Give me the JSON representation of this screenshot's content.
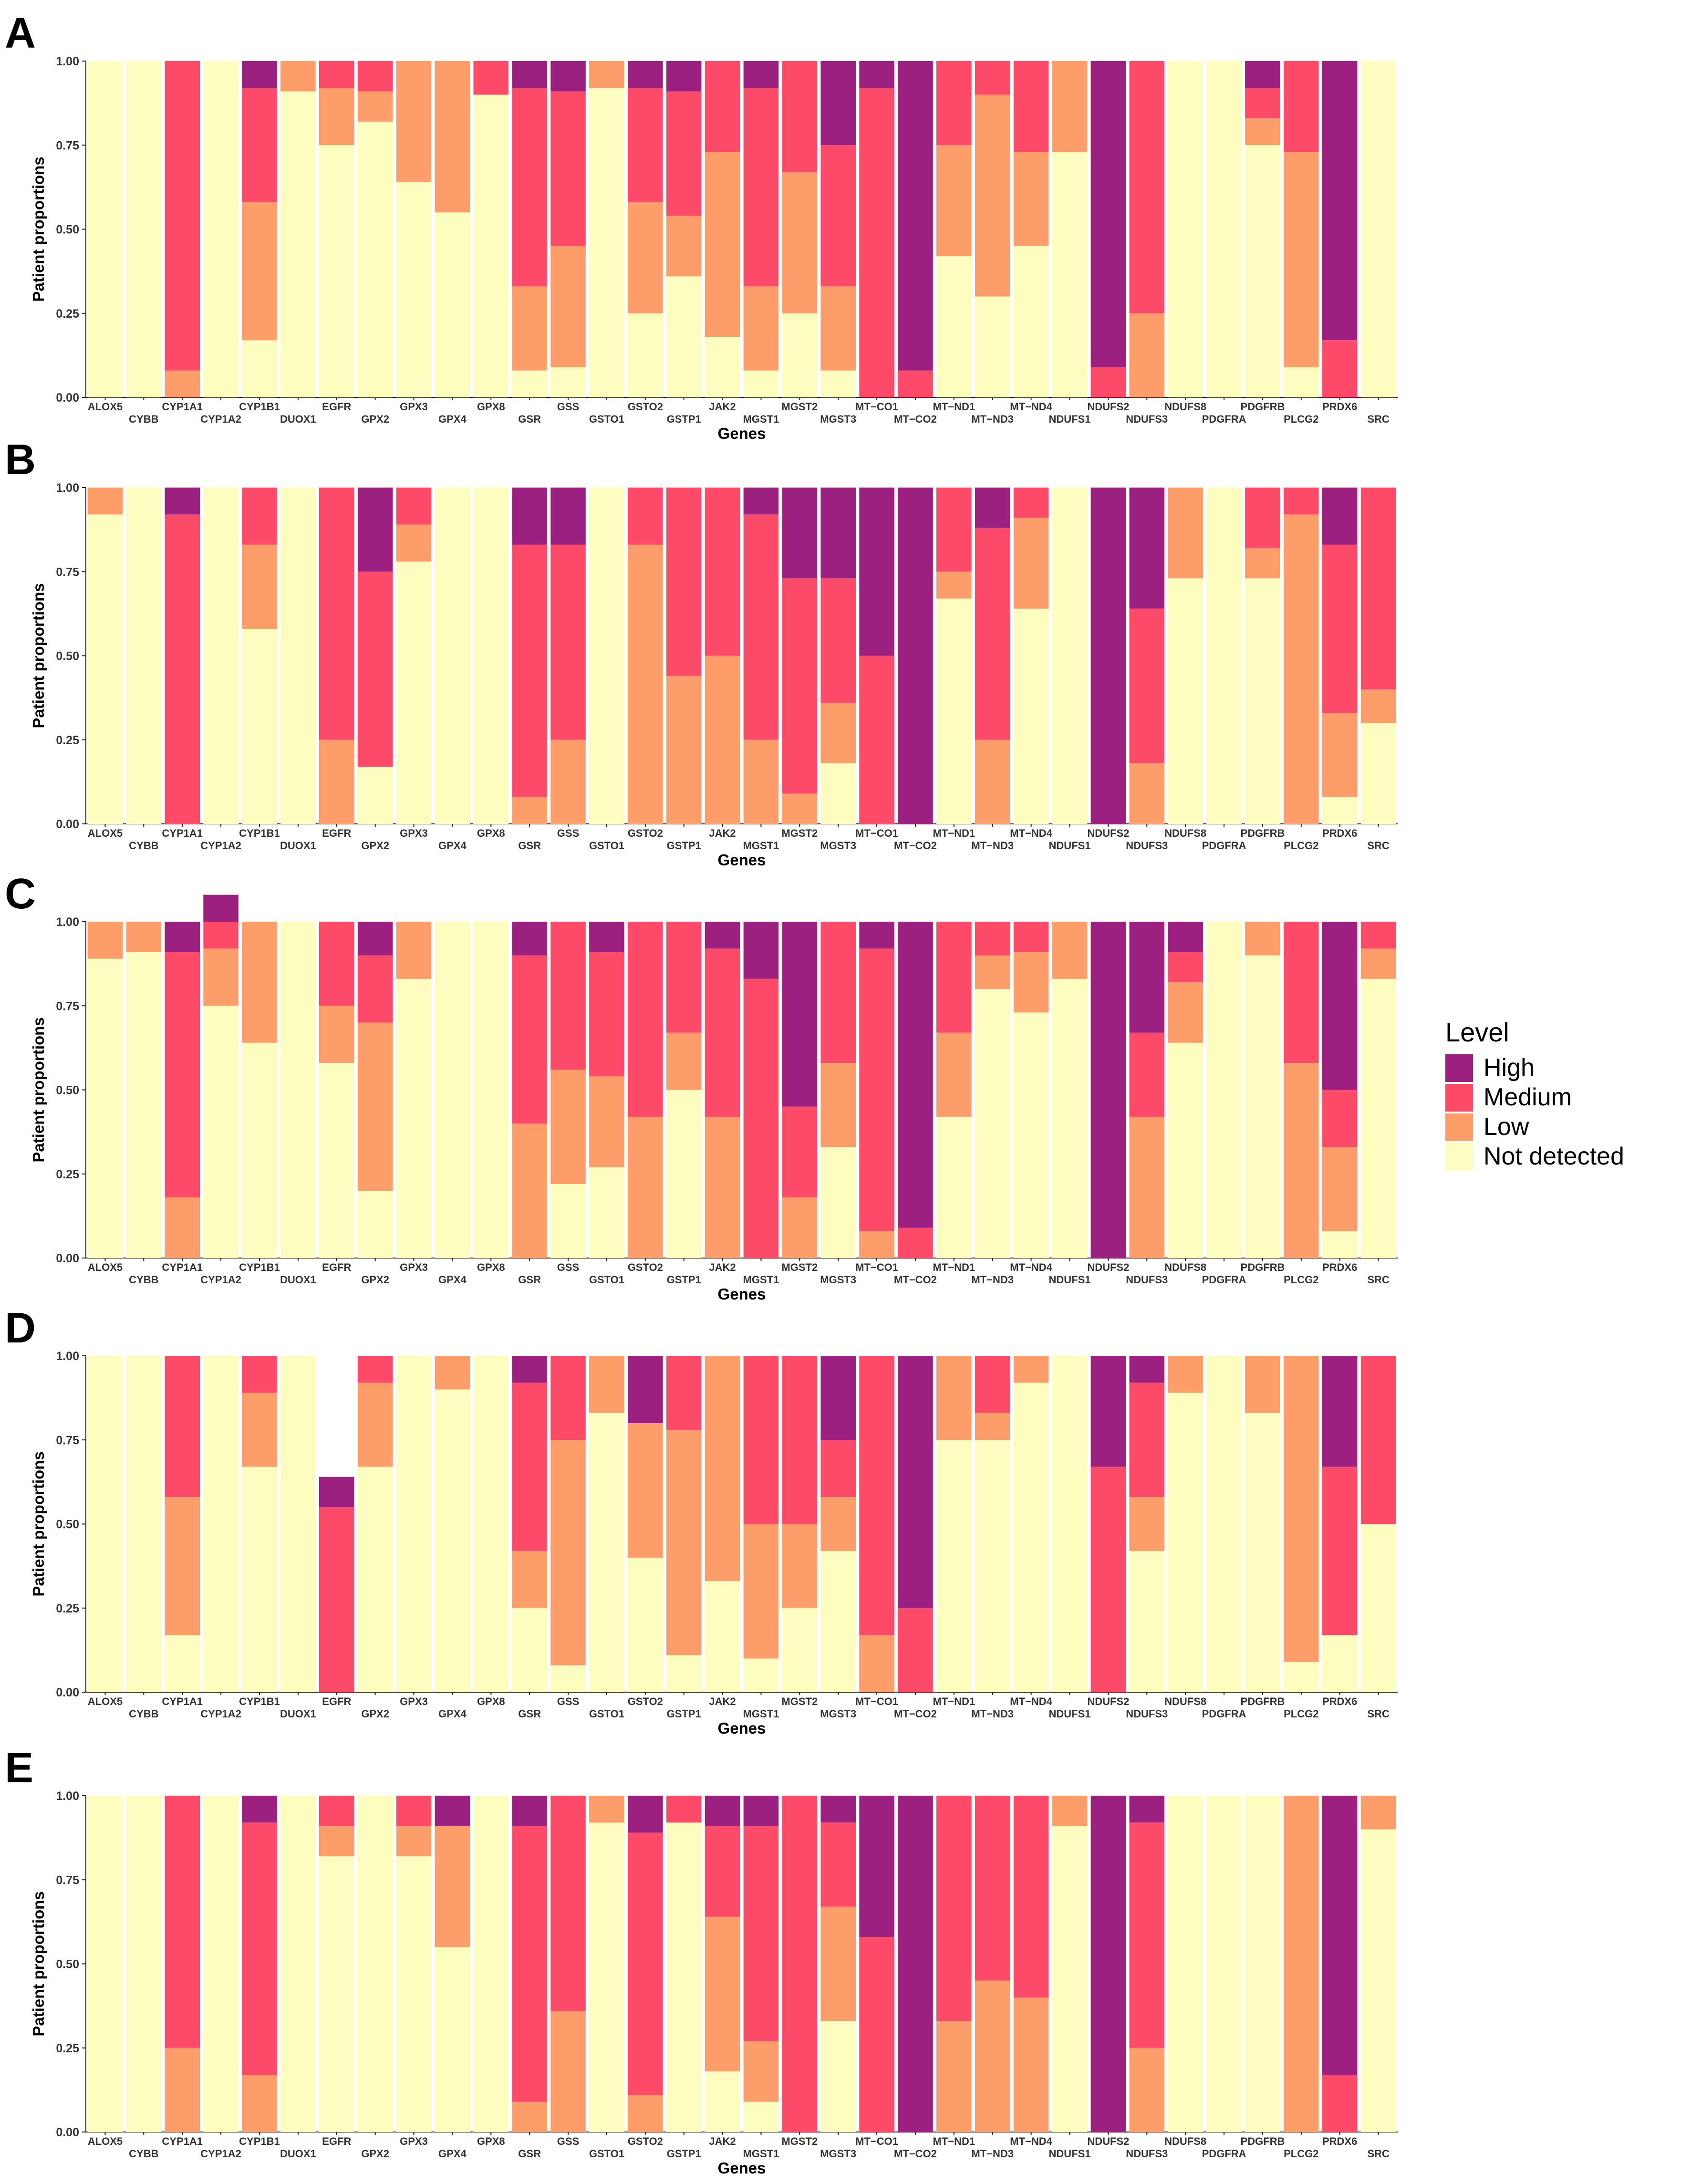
{
  "legend": {
    "title": "Level",
    "items": [
      {
        "label": "High",
        "color": "#9c2080"
      },
      {
        "label": "Medium",
        "color": "#fd4a68"
      },
      {
        "label": "Low",
        "color": "#fd9e6a"
      },
      {
        "label": "Not detected",
        "color": "#fcfdbf"
      }
    ]
  },
  "chart_data": [
    {
      "panel": "A",
      "type": "stacked-bar",
      "xlabel": "Genes",
      "ylabel": "Patient proportions",
      "yticks": [
        "0.00",
        "0.25",
        "0.50",
        "0.75",
        "1.00"
      ],
      "ylim": [
        0,
        1
      ],
      "categories": [
        "ALOX5",
        "CYBB",
        "CYP1A1",
        "CYP1A2",
        "CYP1B1",
        "DUOX1",
        "EGFR",
        "GPX2",
        "GPX3",
        "GPX4",
        "GPX8",
        "GSR",
        "GSS",
        "GSTO1",
        "GSTO2",
        "GSTP1",
        "JAK2",
        "MGST1",
        "MGST2",
        "MGST3",
        "MT−CO1",
        "MT−CO2",
        "MT−ND1",
        "MT−ND3",
        "MT−ND4",
        "NDUFS1",
        "NDUFS2",
        "NDUFS3",
        "NDUFS8",
        "PDGFRA",
        "PDGFRB",
        "PLCG2",
        "PRDX6",
        "SRC"
      ],
      "series": [
        {
          "name": "Not detected",
          "values": [
            1,
            1,
            0,
            1,
            0.17,
            0.91,
            0.75,
            0.82,
            0.64,
            0.55,
            0.9,
            0.08,
            0.09,
            0.92,
            0.25,
            0.36,
            0.18,
            0.08,
            0.25,
            0.08,
            0,
            0,
            0.42,
            0.3,
            0.45,
            0.73,
            0,
            0,
            1,
            1,
            0.75,
            0.09,
            0,
            1
          ]
        },
        {
          "name": "Low",
          "values": [
            0,
            0,
            0.08,
            0,
            0.41,
            0.09,
            0.17,
            0.09,
            0.36,
            0.45,
            0,
            0.25,
            0.36,
            0.08,
            0.33,
            0.18,
            0.55,
            0.25,
            0.42,
            0.25,
            0,
            0,
            0.33,
            0.6,
            0.28,
            0.27,
            0,
            0.25,
            0,
            0,
            0.08,
            0.64,
            0,
            0
          ]
        },
        {
          "name": "Medium",
          "values": [
            0,
            0,
            0.92,
            0,
            0.34,
            0,
            0.08,
            0.09,
            0,
            0,
            0.1,
            0.59,
            0.46,
            0,
            0.34,
            0.37,
            0.27,
            0.59,
            0.33,
            0.42,
            0.92,
            0.08,
            0.25,
            0.1,
            0.27,
            0,
            0.09,
            0.75,
            0,
            0,
            0.09,
            0.27,
            0.17,
            0
          ]
        },
        {
          "name": "High",
          "values": [
            0,
            0,
            0,
            0,
            0.08,
            0,
            0,
            0,
            0,
            0,
            0,
            0.08,
            0.09,
            0,
            0.08,
            0.09,
            0,
            0.08,
            0,
            0.25,
            0.08,
            0.92,
            0,
            0,
            0,
            0,
            0.91,
            0,
            0,
            0,
            0.08,
            0,
            0.83,
            0
          ]
        }
      ]
    },
    {
      "panel": "B",
      "type": "stacked-bar",
      "xlabel": "Genes",
      "ylabel": "Patient proportions",
      "yticks": [
        "0.00",
        "0.25",
        "0.50",
        "0.75",
        "1.00"
      ],
      "ylim": [
        0,
        1
      ],
      "categories": [
        "ALOX5",
        "CYBB",
        "CYP1A1",
        "CYP1A2",
        "CYP1B1",
        "DUOX1",
        "EGFR",
        "GPX2",
        "GPX3",
        "GPX4",
        "GPX8",
        "GSR",
        "GSS",
        "GSTO1",
        "GSTO2",
        "GSTP1",
        "JAK2",
        "MGST1",
        "MGST2",
        "MGST3",
        "MT−CO1",
        "MT−CO2",
        "MT−ND1",
        "MT−ND3",
        "MT−ND4",
        "NDUFS1",
        "NDUFS2",
        "NDUFS3",
        "NDUFS8",
        "PDGFRA",
        "PDGFRB",
        "PLCG2",
        "PRDX6",
        "SRC"
      ],
      "series": [
        {
          "name": "Not detected",
          "values": [
            0.92,
            1,
            0,
            1,
            0.58,
            1,
            0,
            0.17,
            0.78,
            1,
            1,
            0,
            0,
            1,
            0,
            0,
            0,
            0,
            0,
            0.18,
            0,
            0,
            0.67,
            0,
            0.64,
            1,
            0,
            0,
            0.73,
            1,
            0.73,
            0,
            0.08,
            0.3
          ]
        },
        {
          "name": "Low",
          "values": [
            0.08,
            0,
            0,
            0,
            0.25,
            0,
            0.25,
            0,
            0.11,
            0,
            0,
            0.08,
            0.25,
            0,
            0.83,
            0.44,
            0.5,
            0.25,
            0.09,
            0.18,
            0,
            0,
            0.08,
            0.25,
            0.27,
            0,
            0,
            0.18,
            0.27,
            0,
            0.09,
            0.92,
            0.25,
            0.1
          ]
        },
        {
          "name": "Medium",
          "values": [
            0,
            0,
            0.92,
            0,
            0.17,
            0,
            0.75,
            0.58,
            0.11,
            0,
            0,
            0.75,
            0.58,
            0,
            0.17,
            0.56,
            0.5,
            0.67,
            0.64,
            0.37,
            0.5,
            0,
            0.25,
            0.63,
            0.09,
            0,
            0,
            0.46,
            0,
            0,
            0.18,
            0.08,
            0.5,
            0.6
          ]
        },
        {
          "name": "High",
          "values": [
            0,
            0,
            0.08,
            0,
            0,
            0,
            0,
            0.25,
            0,
            0,
            0,
            0.17,
            0.17,
            0,
            0,
            0,
            0,
            0.08,
            0.27,
            0.27,
            0.5,
            1,
            0,
            0.12,
            0,
            0,
            1,
            0.36,
            0,
            0,
            0,
            0,
            0.17,
            0
          ]
        }
      ]
    },
    {
      "panel": "C",
      "type": "stacked-bar",
      "xlabel": "Genes",
      "ylabel": "Patient proportions",
      "yticks": [
        "0.00",
        "0.25",
        "0.50",
        "0.75",
        "1.00"
      ],
      "ylim": [
        0,
        1
      ],
      "categories": [
        "ALOX5",
        "CYBB",
        "CYP1A1",
        "CYP1A2",
        "CYP1B1",
        "DUOX1",
        "EGFR",
        "GPX2",
        "GPX3",
        "GPX4",
        "GPX8",
        "GSR",
        "GSS",
        "GSTO1",
        "GSTO2",
        "GSTP1",
        "JAK2",
        "MGST1",
        "MGST2",
        "MGST3",
        "MT−CO1",
        "MT−CO2",
        "MT−ND1",
        "MT−ND3",
        "MT−ND4",
        "NDUFS1",
        "NDUFS2",
        "NDUFS3",
        "NDUFS8",
        "PDGFRA",
        "PDGFRB",
        "PLCG2",
        "PRDX6",
        "SRC"
      ],
      "series": [
        {
          "name": "Not detected",
          "values": [
            0.89,
            0.91,
            0,
            0.75,
            0.64,
            1,
            0.58,
            0.2,
            0.83,
            1,
            1,
            0,
            0.22,
            0.27,
            0,
            0.5,
            0,
            0,
            0,
            0.33,
            0,
            0,
            0.42,
            0.8,
            0.73,
            0.83,
            0,
            0,
            0.64,
            1,
            0.9,
            0,
            0.08,
            0.83
          ]
        },
        {
          "name": "Low",
          "values": [
            0.11,
            0.09,
            0.18,
            0.17,
            0.36,
            0,
            0.17,
            0.5,
            0.17,
            0,
            0,
            0.4,
            0.34,
            0.27,
            0.42,
            0.17,
            0.42,
            0,
            0.18,
            0.25,
            0.08,
            0,
            0.25,
            0.1,
            0.18,
            0.17,
            0,
            0.42,
            0.18,
            0,
            0.1,
            0.58,
            0.25,
            0.09
          ]
        },
        {
          "name": "Medium",
          "values": [
            0,
            0,
            0.73,
            0.08,
            0,
            0,
            0.25,
            0.2,
            0,
            0,
            0,
            0.5,
            0.44,
            0.37,
            0.58,
            0.33,
            0.5,
            0.83,
            0.27,
            0.42,
            0.84,
            0.09,
            0.33,
            0.1,
            0.09,
            0,
            0,
            0.25,
            0.09,
            0,
            0,
            0.42,
            0.17,
            0.08
          ]
        },
        {
          "name": "High",
          "values": [
            0,
            0,
            0.09,
            0.08,
            0,
            0,
            0,
            0.1,
            0,
            0,
            0,
            0.1,
            0,
            0.09,
            0,
            0,
            0.08,
            0.17,
            0.55,
            0,
            0.08,
            0.91,
            0,
            0,
            0,
            0,
            1,
            0.33,
            0.09,
            0,
            0,
            0,
            0.5,
            0
          ]
        }
      ]
    },
    {
      "panel": "D",
      "type": "stacked-bar",
      "xlabel": "Genes",
      "ylabel": "Patient proportions",
      "yticks": [
        "0.00",
        "0.25",
        "0.50",
        "0.75",
        "1.00"
      ],
      "ylim": [
        0,
        1
      ],
      "categories": [
        "ALOX5",
        "CYBB",
        "CYP1A1",
        "CYP1A2",
        "CYP1B1",
        "DUOX1",
        "EGFR",
        "GPX2",
        "GPX3",
        "GPX4",
        "GPX8",
        "GSR",
        "GSS",
        "GSTO1",
        "GSTO2",
        "GSTP1",
        "JAK2",
        "MGST1",
        "MGST2",
        "MGST3",
        "MT−CO1",
        "MT−CO2",
        "MT−ND1",
        "MT−ND3",
        "MT−ND4",
        "NDUFS1",
        "NDUFS2",
        "NDUFS3",
        "NDUFS8",
        "PDGFRA",
        "PDGFRB",
        "PLCG2",
        "PRDX6",
        "SRC"
      ],
      "series": [
        {
          "name": "Not detected",
          "values": [
            1,
            1,
            0.17,
            1,
            0.67,
            1,
            0,
            0.67,
            1,
            0.9,
            1,
            0.25,
            0.08,
            0.83,
            0.4,
            0.11,
            0.33,
            0.1,
            0.25,
            0.42,
            0,
            0,
            0.75,
            0.75,
            0.92,
            1,
            0,
            0.42,
            0.89,
            1,
            0.83,
            0.09,
            0.17,
            0.5
          ]
        },
        {
          "name": "Low",
          "values": [
            0,
            0,
            0.41,
            0,
            0.22,
            0,
            0,
            0.25,
            0,
            0.1,
            0,
            0.17,
            0.67,
            0.17,
            0.4,
            0.67,
            0.67,
            0.4,
            0.25,
            0.16,
            0.17,
            0,
            0.25,
            0.08,
            0.08,
            0,
            0,
            0.16,
            0.11,
            0,
            0.17,
            0.91,
            0,
            0
          ]
        },
        {
          "name": "Medium",
          "values": [
            0,
            0,
            0.42,
            0,
            0.11,
            0,
            0.55,
            0.08,
            0,
            0,
            0,
            0.5,
            0.25,
            0,
            0,
            0.22,
            0,
            0.5,
            0.5,
            0.17,
            0.83,
            0.25,
            0,
            0.17,
            0,
            0,
            0.67,
            0.34,
            0,
            0,
            0,
            0,
            0.5,
            0.5
          ]
        },
        {
          "name": "High",
          "values": [
            0,
            0,
            0,
            0,
            0,
            0,
            0.09,
            0,
            0,
            0,
            0,
            0.08,
            0,
            0,
            0.2,
            0,
            0,
            0,
            0,
            0.25,
            0,
            0.75,
            0,
            0,
            0,
            0,
            0.33,
            0.08,
            0,
            0,
            0,
            0,
            0.33,
            0
          ]
        }
      ]
    },
    {
      "panel": "E",
      "type": "stacked-bar",
      "xlabel": "Genes",
      "ylabel": "Patient proportions",
      "yticks": [
        "0.00",
        "0.25",
        "0.50",
        "0.75",
        "1.00"
      ],
      "ylim": [
        0,
        1
      ],
      "categories": [
        "ALOX5",
        "CYBB",
        "CYP1A1",
        "CYP1A2",
        "CYP1B1",
        "DUOX1",
        "EGFR",
        "GPX2",
        "GPX3",
        "GPX4",
        "GPX8",
        "GSR",
        "GSS",
        "GSTO1",
        "GSTO2",
        "GSTP1",
        "JAK2",
        "MGST1",
        "MGST2",
        "MGST3",
        "MT−CO1",
        "MT−CO2",
        "MT−ND1",
        "MT−ND3",
        "MT−ND4",
        "NDUFS1",
        "NDUFS2",
        "NDUFS3",
        "NDUFS8",
        "PDGFRA",
        "PDGFRB",
        "PLCG2",
        "PRDX6",
        "SRC"
      ],
      "series": [
        {
          "name": "Not detected",
          "values": [
            1,
            1,
            0,
            1,
            0,
            1,
            0.82,
            1,
            0.82,
            0.55,
            1,
            0,
            0,
            0.92,
            0,
            0.92,
            0.18,
            0.09,
            0,
            0.33,
            0,
            0,
            0,
            0,
            0,
            0.91,
            0,
            0,
            1,
            1,
            1,
            0,
            0,
            0.9
          ]
        },
        {
          "name": "Low",
          "values": [
            0,
            0,
            0.25,
            0,
            0.17,
            0,
            0.09,
            0,
            0.09,
            0.36,
            0,
            0.09,
            0.36,
            0.08,
            0.11,
            0,
            0.46,
            0.18,
            0,
            0.34,
            0,
            0,
            0.33,
            0.45,
            0.4,
            0.09,
            0,
            0.25,
            0,
            0,
            0,
            1,
            0,
            0.1
          ]
        },
        {
          "name": "Medium",
          "values": [
            0,
            0,
            0.75,
            0,
            0.75,
            0,
            0.09,
            0,
            0.09,
            0,
            0,
            0.82,
            0.64,
            0,
            0.78,
            0.08,
            0.27,
            0.64,
            1,
            0.25,
            0.58,
            0,
            0.67,
            0.55,
            0.6,
            0,
            0,
            0.67,
            0,
            0,
            0,
            0,
            0.17,
            0
          ]
        },
        {
          "name": "High",
          "values": [
            0,
            0,
            0,
            0,
            0.08,
            0,
            0,
            0,
            0,
            0.09,
            0,
            0.09,
            0,
            0,
            0.11,
            0,
            0.09,
            0.09,
            0,
            0.08,
            0.42,
            1,
            0,
            0,
            0,
            0,
            1,
            0.08,
            0,
            0,
            0,
            0,
            0.83,
            0
          ]
        }
      ]
    }
  ]
}
